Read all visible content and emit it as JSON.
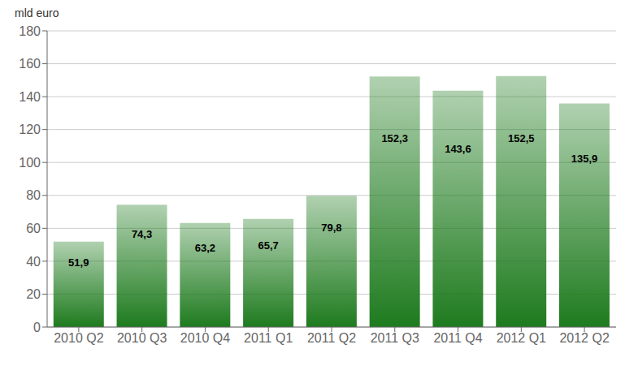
{
  "chart_data": {
    "type": "bar",
    "ylabel": "mld euro",
    "categories": [
      "2010 Q2",
      "2010 Q3",
      "2010 Q4",
      "2011 Q1",
      "2011 Q2",
      "2011 Q3",
      "2011 Q4",
      "2012 Q1",
      "2012 Q2"
    ],
    "values": [
      51.9,
      74.3,
      63.2,
      65.7,
      79.8,
      152.3,
      143.6,
      152.5,
      135.9
    ],
    "value_labels": [
      "51,9",
      "74,3",
      "63,2",
      "65,7",
      "79,8",
      "152,3",
      "143,6",
      "152,5",
      "135,9"
    ],
    "data_labels": true,
    "color": "#1e7b1e",
    "ylim": [
      0,
      180
    ],
    "yticks": [
      0,
      20,
      40,
      60,
      80,
      100,
      120,
      140,
      160,
      180
    ],
    "grid": true
  }
}
